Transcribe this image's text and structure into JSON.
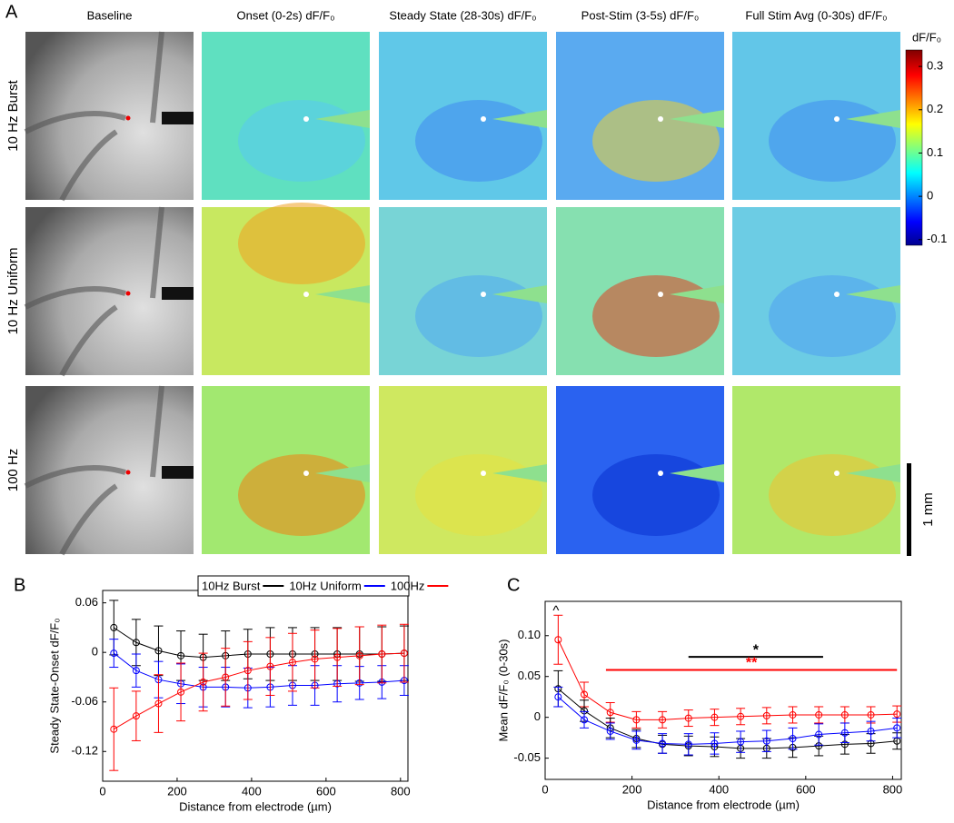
{
  "chart_data": [
    {
      "type": "image_grid",
      "panel_label": "A",
      "columns": [
        "Baseline",
        "Onset (0-2s) dF/F₀",
        "Steady State (28-30s) dF/F₀",
        "Post-Stim (3-5s) dF/F₀",
        "Full Stim Avg (0-30s) dF/F₀"
      ],
      "rows": [
        "10 Hz Burst",
        "10 Hz Uniform",
        "100 Hz"
      ],
      "colorbar": {
        "title": "dF/F₀",
        "lim": [
          -0.113,
          0.338
        ],
        "ticks": [
          0.3,
          0.2,
          0.1,
          0,
          -0.1
        ]
      },
      "scale_bar": "1 mm"
    },
    {
      "type": "line",
      "panel_label": "B",
      "x_label": "Distance from electrode (µm)",
      "y_label": "Steady State-Onset dF/F₀",
      "x": [
        30,
        90,
        150,
        210,
        270,
        330,
        390,
        450,
        510,
        570,
        630,
        690,
        750,
        810
      ],
      "xlim": [
        0,
        820
      ],
      "xticks": [
        0,
        200,
        400,
        600,
        800
      ],
      "ylim": [
        -0.156,
        0.075
      ],
      "yticks": [
        0.06,
        0,
        -0.06,
        -0.12
      ],
      "legend": "top",
      "series": [
        {
          "name": "10Hz Burst",
          "color": "#000000",
          "values": [
            0.03,
            0.012,
            0.002,
            -0.004,
            -0.006,
            -0.004,
            -0.002,
            -0.002,
            -0.002,
            -0.002,
            -0.002,
            -0.002,
            -0.002,
            -0.001
          ],
          "errors": [
            0.033,
            0.028,
            0.03,
            0.03,
            0.028,
            0.03,
            0.03,
            0.032,
            0.032,
            0.032,
            0.032,
            0.033,
            0.033,
            0.033
          ]
        },
        {
          "name": "10Hz Uniform",
          "color": "#0000ff",
          "values": [
            -0.001,
            -0.022,
            -0.033,
            -0.038,
            -0.042,
            -0.042,
            -0.043,
            -0.042,
            -0.04,
            -0.04,
            -0.038,
            -0.037,
            -0.036,
            -0.034
          ],
          "errors": [
            0.017,
            0.02,
            0.022,
            0.024,
            0.024,
            0.024,
            0.024,
            0.024,
            0.024,
            0.024,
            0.022,
            0.02,
            0.02,
            0.018
          ]
        },
        {
          "name": "100Hz",
          "color": "#ff0000",
          "values": [
            -0.093,
            -0.077,
            -0.062,
            -0.048,
            -0.036,
            -0.03,
            -0.022,
            -0.017,
            -0.012,
            -0.008,
            -0.006,
            -0.004,
            -0.002,
            -0.001
          ],
          "errors": [
            0.05,
            0.03,
            0.035,
            0.035,
            0.035,
            0.035,
            0.035,
            0.035,
            0.035,
            0.035,
            0.035,
            0.035,
            0.035,
            0.035
          ]
        }
      ]
    },
    {
      "type": "line",
      "panel_label": "C",
      "x_label": "Distance from electrode (µm)",
      "y_label": "Mean dF/F₀ (0-30s)",
      "x": [
        30,
        90,
        150,
        210,
        270,
        330,
        390,
        450,
        510,
        570,
        630,
        690,
        750,
        810
      ],
      "xlim": [
        0,
        820
      ],
      "xticks": [
        0,
        200,
        400,
        600,
        800
      ],
      "ylim": [
        -0.076,
        0.142
      ],
      "yticks": [
        {
          "value": 0.1,
          "label": "0.10"
        },
        0.05,
        0,
        -0.05
      ],
      "series": [
        {
          "color": "#ff0000",
          "values": [
            0.095,
            0.028,
            0.006,
            -0.003,
            -0.003,
            -0.001,
            0,
            0.001,
            0.002,
            0.003,
            0.003,
            0.003,
            0.003,
            0.004
          ],
          "errors": [
            0.03,
            0.015,
            0.012,
            0.01,
            0.01,
            0.01,
            0.01,
            0.01,
            0.01,
            0.01,
            0.01,
            0.01,
            0.01,
            0.01
          ]
        },
        {
          "color": "#000000",
          "values": [
            0.035,
            0.008,
            -0.013,
            -0.026,
            -0.033,
            -0.035,
            -0.036,
            -0.038,
            -0.038,
            -0.037,
            -0.035,
            -0.033,
            -0.032,
            -0.029
          ],
          "errors": [
            0.022,
            0.013,
            0.012,
            0.011,
            0.011,
            0.012,
            0.012,
            0.012,
            0.012,
            0.012,
            0.012,
            0.012,
            0.012,
            0.01
          ]
        },
        {
          "color": "#0000ff",
          "values": [
            0.025,
            -0.003,
            -0.017,
            -0.028,
            -0.032,
            -0.033,
            -0.032,
            -0.03,
            -0.029,
            -0.026,
            -0.021,
            -0.019,
            -0.017,
            -0.013
          ],
          "errors": [
            0.012,
            0.01,
            0.01,
            0.011,
            0.012,
            0.013,
            0.013,
            0.013,
            0.013,
            0.013,
            0.013,
            0.012,
            0.012,
            0.012
          ]
        }
      ],
      "annotations": [
        {
          "text": "^",
          "x": 25,
          "y": 0.13
        },
        {
          "text": "*",
          "x": [
            330,
            640
          ],
          "y": 0.074,
          "color": "#000000"
        },
        {
          "text": "**",
          "x": [
            140,
            810
          ],
          "y": 0.058,
          "color": "#ff0000"
        }
      ]
    }
  ]
}
